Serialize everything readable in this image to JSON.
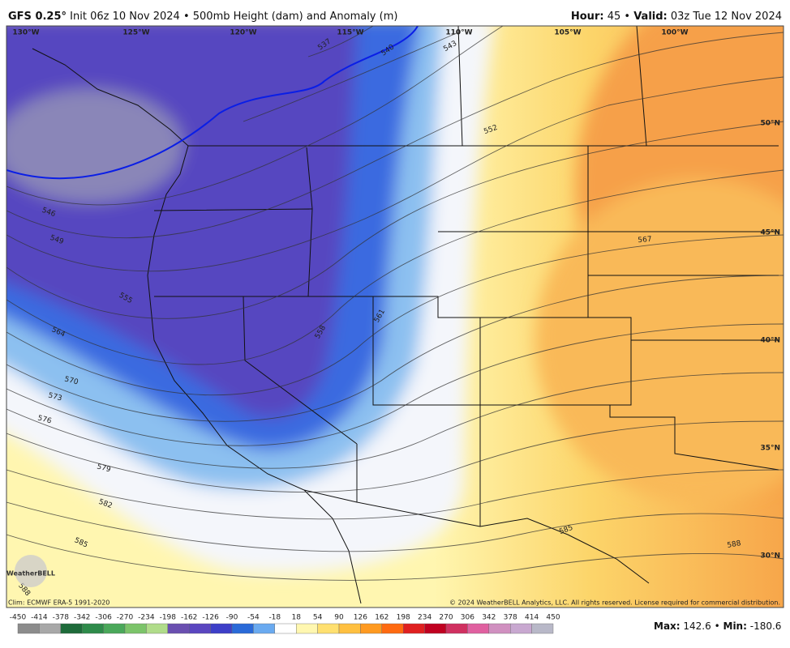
{
  "header": {
    "model": "GFS 0.25°",
    "description": "Init 06z 10 Nov 2024 • 500mb Height (dam) and Anomaly (m)",
    "hour_label": "Hour:",
    "hour": 45,
    "separator": "•",
    "valid_label": "Valid:",
    "valid": "03z Tue 12 Nov 2024"
  },
  "map": {
    "longitude_labels": [
      "130°W",
      "125°W",
      "120°W",
      "115°W",
      "110°W",
      "105°W",
      "100°W"
    ],
    "latitude_labels": [
      "50°N",
      "45°N",
      "40°N",
      "35°N",
      "30°N"
    ],
    "contour_labels": [
      537,
      540,
      543,
      546,
      549,
      552,
      555,
      558,
      561,
      564,
      567,
      570,
      573,
      576,
      579,
      582,
      585,
      585,
      588,
      588
    ],
    "logo": "WeatherBELL"
  },
  "footer": {
    "climatology": "Clim: ECMWF ERA-5 1991-2020",
    "copyright": "© 2024 WeatherBELL Analytics, LLC. All rights reserved. License required for commercial distribution."
  },
  "colorbar": {
    "ticks": [
      -450,
      -414,
      -378,
      -342,
      -306,
      -270,
      -234,
      -198,
      -162,
      -126,
      -90,
      -54,
      -18,
      18,
      54,
      90,
      126,
      162,
      198,
      234,
      270,
      306,
      342,
      378,
      414,
      450
    ],
    "colors": [
      "#8c8c8c",
      "#a8a8a8",
      "#1e6b3a",
      "#2e8b4a",
      "#4aa85a",
      "#7cc46a",
      "#b0dc8a",
      "#6a4fb0",
      "#5a46c0",
      "#3d3fc8",
      "#2a6ad8",
      "#6aaaf0",
      "#ffffff",
      "#fff7b0",
      "#ffe070",
      "#ffc040",
      "#ff9a20",
      "#ff6a10",
      "#e02020",
      "#c00020",
      "#d03060",
      "#e060a0",
      "#d090c0",
      "#c8a8d0",
      "#b8b8c8"
    ]
  },
  "stats": {
    "max_label": "Max:",
    "max": 142.6,
    "separator": "•",
    "min_label": "Min:",
    "min": -180.6
  }
}
